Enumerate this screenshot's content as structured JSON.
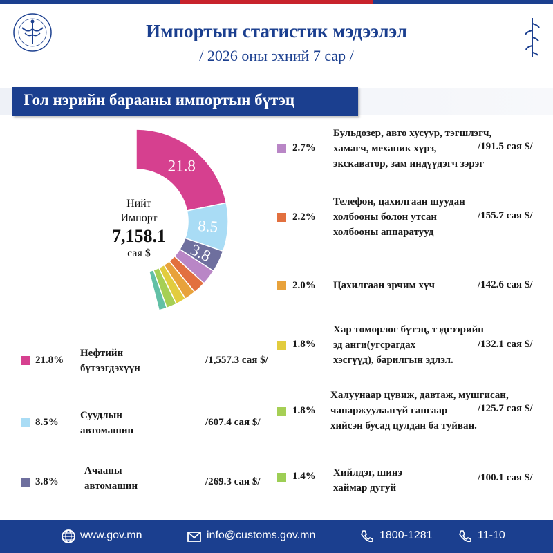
{
  "header": {
    "title": "Импортын статистик мэдээлэл",
    "subtitle": "/ 2026 оны эхний 7 сар /"
  },
  "section": {
    "title": "Гол нэрийн барааны импортын бүтэц"
  },
  "donut_center": {
    "line1": "Нийт",
    "line2": "Импорт",
    "total": "7,158.1",
    "unit": "сая $"
  },
  "chart_data": {
    "type": "pie",
    "total": 7158.1,
    "slices": [
      {
        "label": "Нефтийн бүтээгдэхүүн",
        "value": 21.8,
        "amount": 1557.3,
        "color": "#d6408f",
        "display": "21.8"
      },
      {
        "label": "Суудлын автомашин",
        "value": 8.5,
        "amount": 607.4,
        "color": "#a9dcf5",
        "display": "8.5"
      },
      {
        "label": "Ачааны автомашин",
        "value": 3.8,
        "amount": 269.3,
        "color": "#6e6f9e",
        "display": "3.8"
      },
      {
        "label": "Бульдозер",
        "value": 2.7,
        "amount": 191.5,
        "color": "#b986c6",
        "display": ""
      },
      {
        "label": "Телефон",
        "value": 2.2,
        "amount": 155.7,
        "color": "#e2703f",
        "display": ""
      },
      {
        "label": "Цахилгаан эрчим хүч",
        "value": 2.0,
        "amount": 142.6,
        "color": "#e8a23b",
        "display": ""
      },
      {
        "label": "Хар төмөрлөг",
        "value": 1.8,
        "amount": 132.1,
        "color": "#e2cc3e",
        "display": ""
      },
      {
        "label": "Халуунаар цувиж",
        "value": 1.8,
        "amount": 125.7,
        "color": "#a6cf55",
        "display": ""
      },
      {
        "label": "Хийлдэг шинэ дугуй",
        "value": 1.4,
        "amount": 100.1,
        "color": "#62c0a6",
        "display": ""
      }
    ]
  },
  "legend_left": [
    {
      "pct": "21.8%",
      "label_l1": "Нефтийн",
      "label_l2": "бүтээгдэхүүн",
      "value": "/1,557.3 сая $/",
      "color": "#d6408f"
    },
    {
      "pct": "8.5%",
      "label_l1": "Суудлын",
      "label_l2": "автомашин",
      "value": "/607.4 сая $/",
      "color": "#a9dcf5"
    },
    {
      "pct": "3.8%",
      "label_l1": "Ачааны",
      "label_l2": "автомашин",
      "value": "/269.3 сая $/",
      "color": "#6e6f9e"
    }
  ],
  "legend_right": [
    {
      "pct": "2.7%",
      "lines": [
        "Бульдозер, авто хусуур, тэгшлэгч,",
        "хамагч, механик хүрз,",
        "экскаватор, зам индүүдэгч зэрэг"
      ],
      "value": "/191.5  сая $/",
      "color": "#b986c6"
    },
    {
      "pct": "2.2%",
      "lines": [
        "Телефон, цахилгаан шуудан",
        "холбооны болон утсан",
        "холбооны аппаратууд"
      ],
      "value": "/155.7 сая $/",
      "color": "#e2703f"
    },
    {
      "pct": "2.0%",
      "lines": [
        "Цахилгаан эрчим хүч"
      ],
      "value": "/142.6 сая $/",
      "color": "#e8a23b"
    },
    {
      "pct": "1.8%",
      "lines": [
        "Хар төмөрлөг бүтэц, тэдгээрийн",
        "эд анги(угсрагдах",
        "хэсгүүд), барилгын эдлэл."
      ],
      "value": "/132.1 сая $/",
      "color": "#e2cc3e"
    },
    {
      "pct": "1.8%",
      "lines": [
        "Халуунаар цувиж, давтаж, мушгисан,",
        "чанаржуулаагүй гангаар",
        "хийсэн бусад цулдан ба туйван."
      ],
      "value": "/125.7 сая $/",
      "color": "#a6cf55"
    },
    {
      "pct": "1.4%",
      "lines": [
        "Хийлдэг, шинэ",
        "хаймар дугуй"
      ],
      "value": "/100.1 сая $/",
      "color": "#9dce55"
    }
  ],
  "footer": {
    "website": "www.gov.mn",
    "email": "info@customs.gov.mn",
    "phone": "1800-1281",
    "phone2": "11-10"
  },
  "colors": {
    "brand": "#1b3f8f",
    "accent": "#c8232c"
  }
}
